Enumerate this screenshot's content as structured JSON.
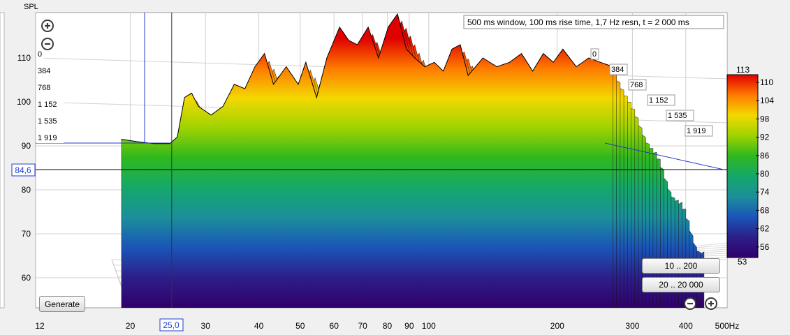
{
  "chart_data": {
    "type": "area",
    "subtype": "waterfall-3d",
    "ylabel": "SPL",
    "x_unit": "Hz",
    "x_scale": "log",
    "xlim": [
      12,
      500
    ],
    "ylim": [
      55,
      118
    ],
    "x_ticks": [
      "12",
      "20",
      "30",
      "40",
      "50",
      "60",
      "70",
      "80",
      "90",
      "100",
      "200",
      "300",
      "400",
      "500Hz"
    ],
    "x_tick_values": [
      12,
      20,
      30,
      40,
      50,
      60,
      70,
      80,
      90,
      100,
      200,
      300,
      400,
      500
    ],
    "y_ticks": [
      60,
      70,
      80,
      90,
      100,
      110
    ],
    "z_ticks": [
      "0",
      "384",
      "768",
      "1 152",
      "1 535",
      "1 919"
    ],
    "info_box": "500 ms window, 100 ms rise time,  1,7 Hz resn, t = 2 000 ms",
    "cursor": {
      "x_label": "25,0",
      "y_label": "84,6",
      "x": 25.0,
      "y": 84.6
    },
    "colorbar": {
      "max_label": "113",
      "min_label": "53",
      "ticks": [
        "110",
        "104",
        "98",
        "92",
        "86",
        "80",
        "74",
        "68",
        "62",
        "56"
      ],
      "colors": [
        "#e00000",
        "#ff7a00",
        "#f3d800",
        "#9fd300",
        "#2fb81e",
        "#14a86a",
        "#1b8f9a",
        "#1a55b8",
        "#2c1f8a",
        "#32006a"
      ]
    },
    "front_series": {
      "name": "",
      "x": [
        18.5,
        20,
        22,
        24,
        25,
        26,
        27,
        28,
        30,
        32,
        34,
        36,
        38,
        40,
        42,
        45,
        48,
        50,
        53,
        56,
        60,
        63,
        66,
        70,
        74,
        78,
        82,
        86,
        90,
        95,
        100,
        105,
        110,
        115,
        120,
        130,
        140,
        150,
        160,
        170,
        180,
        190,
        200,
        215,
        230,
        245,
        262
      ],
      "y": [
        91.5,
        91,
        90.5,
        90.5,
        92,
        101,
        102,
        99,
        97,
        99,
        104,
        103,
        108,
        111,
        104,
        108,
        104,
        109,
        101,
        110,
        117,
        114,
        113,
        117,
        110,
        117,
        120,
        112,
        110,
        108,
        109,
        107,
        112,
        113,
        106,
        110,
        108,
        109,
        111,
        107,
        111,
        109,
        112,
        108,
        110,
        109,
        108
      ]
    }
  },
  "ui": {
    "generate_label": "Generate",
    "range_low_label": "10 .. 200",
    "range_full_label": "20 .. 20 000",
    "zoom_in_icon": "plus-circle-icon",
    "zoom_out_icon": "minus-circle-icon"
  }
}
